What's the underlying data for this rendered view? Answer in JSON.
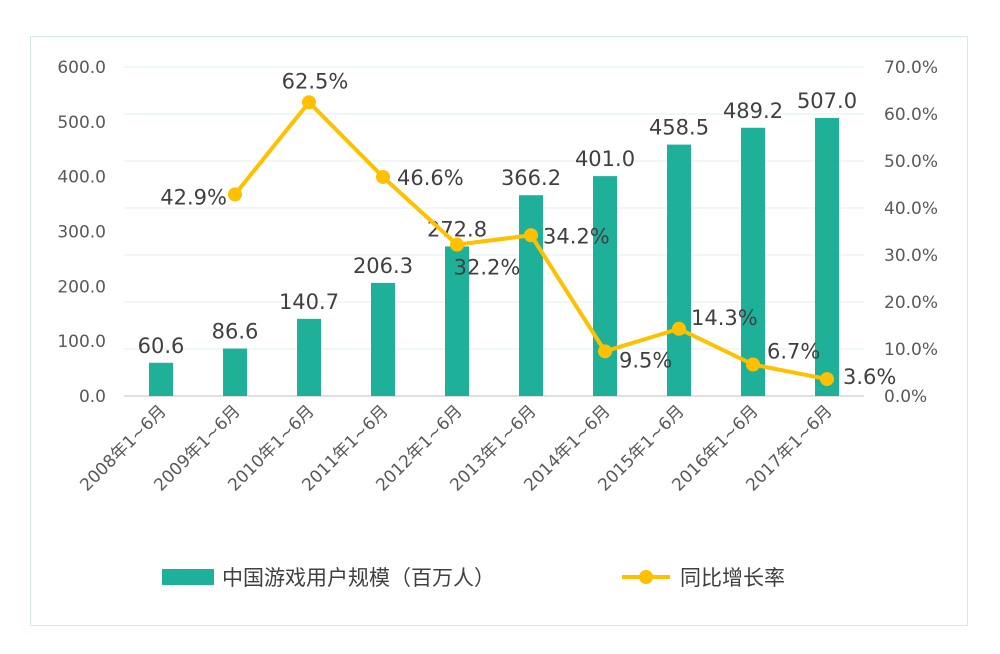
{
  "chart_data": {
    "type": "bar",
    "categories": [
      "2008年1~6月",
      "2009年1~6月",
      "2010年1~6月",
      "2011年1~6月",
      "2012年1~6月",
      "2013年1~6月",
      "2014年1~6月",
      "2015年1~6月",
      "2016年1~6月",
      "2017年1~6月"
    ],
    "series": [
      {
        "name": "中国游戏用户规模（百万人）",
        "type": "bar",
        "axis": "left",
        "color": "#1fb09a",
        "values": [
          60.6,
          86.6,
          140.7,
          206.3,
          272.8,
          366.2,
          401.0,
          458.5,
          489.2,
          507.0
        ],
        "labels": [
          "60.6",
          "86.6",
          "140.7",
          "206.3",
          "272.8",
          "366.2",
          "401.0",
          "458.5",
          "489.2",
          "507.0"
        ]
      },
      {
        "name": "同比增长率",
        "type": "line",
        "axis": "right",
        "color": "#ffc000",
        "values": [
          null,
          42.9,
          62.5,
          46.6,
          32.2,
          34.2,
          9.5,
          14.3,
          6.7,
          3.6
        ],
        "labels": [
          "",
          "42.9%",
          "62.5%",
          "46.6%",
          "32.2%",
          "34.2%",
          "9.5%",
          "14.3%",
          "6.7%",
          "3.6%"
        ]
      }
    ],
    "ylim": [
      0,
      600
    ],
    "y2lim": [
      0,
      70
    ],
    "yticks": [
      "0.0",
      "100.0",
      "200.0",
      "300.0",
      "400.0",
      "500.0",
      "600.0"
    ],
    "y2ticks": [
      "0.0%",
      "10.0%",
      "20.0%",
      "30.0%",
      "40.0%",
      "50.0%",
      "60.0%",
      "70.0%"
    ],
    "grid": true,
    "legend_position": "bottom"
  }
}
